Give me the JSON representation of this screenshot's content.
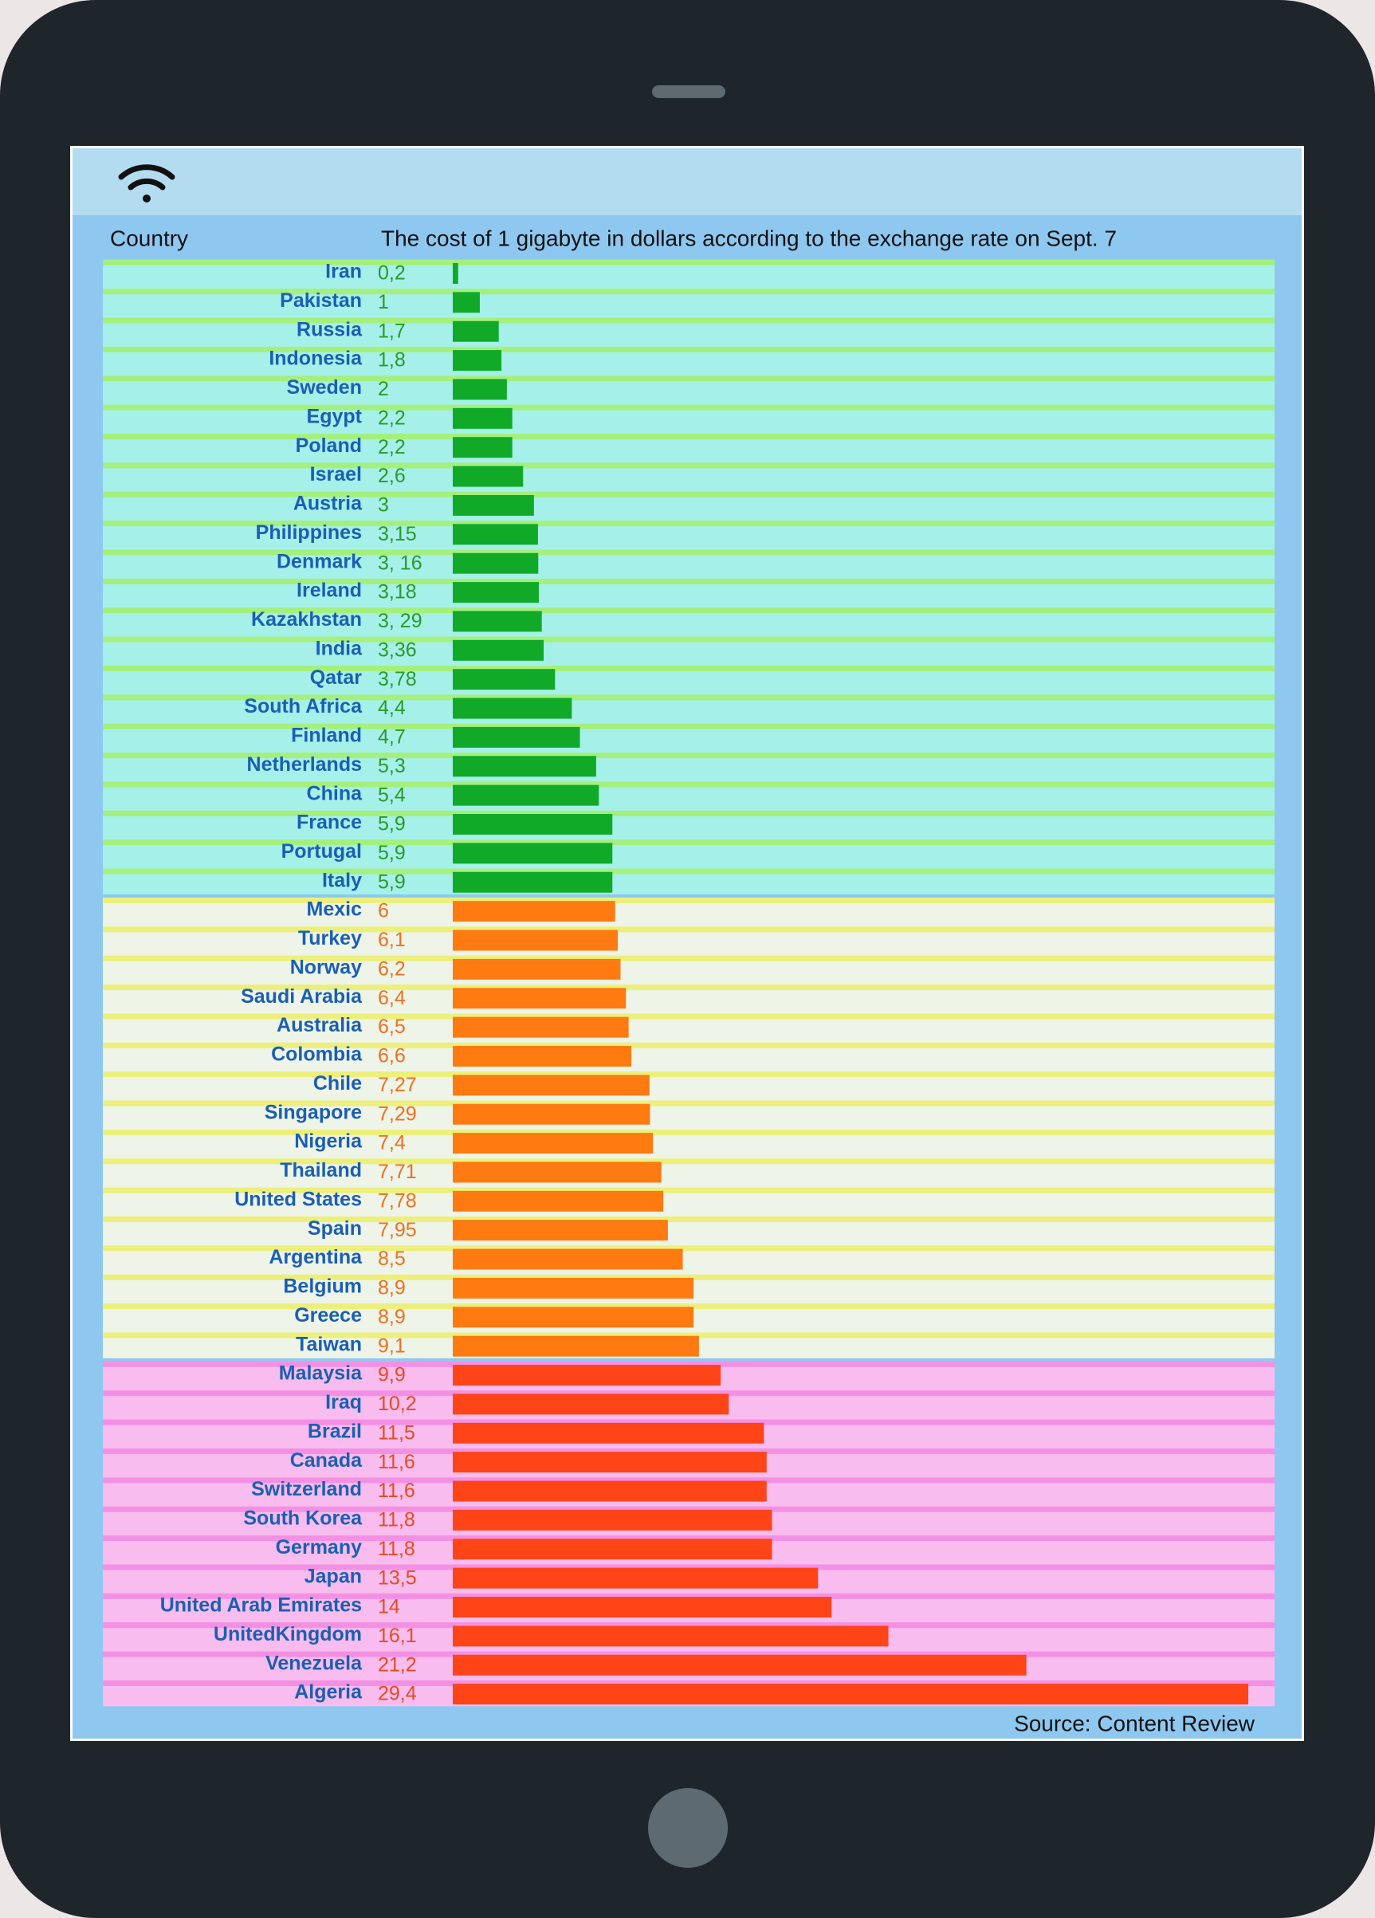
{
  "chart_data": {
    "type": "bar",
    "title": "The cost of 1 gigabyte in dollars according to the exchange rate on Sept. 7",
    "y_label": "Country",
    "source": "Source: Content Review",
    "groups": [
      {
        "band_color": "#a6f0ea",
        "stripe_color": "#a4f07c",
        "bar_color": "#10aa28",
        "label_color": "#2a9a2a",
        "categories": [
          "Iran",
          "Pakistan",
          "Russia",
          "Indonesia",
          "Sweden",
          "Egypt",
          "Poland",
          "Israel",
          "Austria",
          "Philippines",
          "Denmark",
          "Ireland",
          "Kazakhstan",
          "India",
          "Qatar",
          "South Africa",
          "Finland",
          "Netherlands",
          "China",
          "France",
          "Portugal",
          "Italy"
        ],
        "values": [
          0.2,
          1,
          1.7,
          1.8,
          2,
          2.2,
          2.2,
          2.6,
          3,
          3.15,
          3.16,
          3.18,
          3.29,
          3.36,
          3.78,
          4.4,
          4.7,
          5.3,
          5.4,
          5.9,
          5.9,
          5.9
        ],
        "value_labels": [
          "0,2",
          "1",
          "1,7",
          "1,8",
          "2",
          "2,2",
          "2,2",
          "2,6",
          "3",
          "3,15",
          "3, 16",
          "3,18",
          "3, 29",
          "3,36",
          "3,78",
          "4,4",
          "4,7",
          "5,3",
          "5,4",
          "5,9",
          "5,9",
          "5,9"
        ]
      },
      {
        "band_color": "#eef4e8",
        "stripe_color": "#ecf07a",
        "bar_color": "#ff7a10",
        "label_color": "#f07020",
        "categories": [
          "Mexic",
          "Turkey",
          "Norway",
          "Saudi Arabia",
          "Australia",
          "Colombia",
          "Chile",
          "Singapore",
          "Nigeria",
          "Thailand",
          "United States",
          "Spain",
          "Argentina",
          "Belgium",
          "Greece",
          "Taiwan"
        ],
        "values": [
          6,
          6.1,
          6.2,
          6.4,
          6.5,
          6.6,
          7.27,
          7.29,
          7.4,
          7.71,
          7.78,
          7.95,
          8.5,
          8.9,
          8.9,
          9.1
        ],
        "value_labels": [
          "6",
          "6,1",
          "6,2",
          "6,4",
          "6,5",
          "6,6",
          "7,27",
          "7,29",
          "7,4",
          "7,71",
          "7,78",
          "7,95",
          "8,5",
          "8,9",
          "8,9",
          "9,1"
        ]
      },
      {
        "band_color": "#f8bcee",
        "stripe_color": "#f490e4",
        "bar_color": "#ff4418",
        "label_color": "#e84a20",
        "categories": [
          "Malaysia",
          "Iraq",
          "Brazil",
          "Canada",
          "Switzerland",
          "South Korea",
          "Germany",
          "Japan",
          "United Arab Emirates",
          "UnitedKingdom",
          "Venezuela",
          "Algeria"
        ],
        "values": [
          9.9,
          10.2,
          11.5,
          11.6,
          11.6,
          11.8,
          11.8,
          13.5,
          14,
          16.1,
          21.2,
          29.4
        ],
        "value_labels": [
          "9,9",
          "10,2",
          "11,5",
          "11,6",
          "11,6",
          "11,8",
          "11,8",
          "13,5",
          "14",
          "16,1",
          "21,2",
          "29,4"
        ]
      }
    ]
  }
}
